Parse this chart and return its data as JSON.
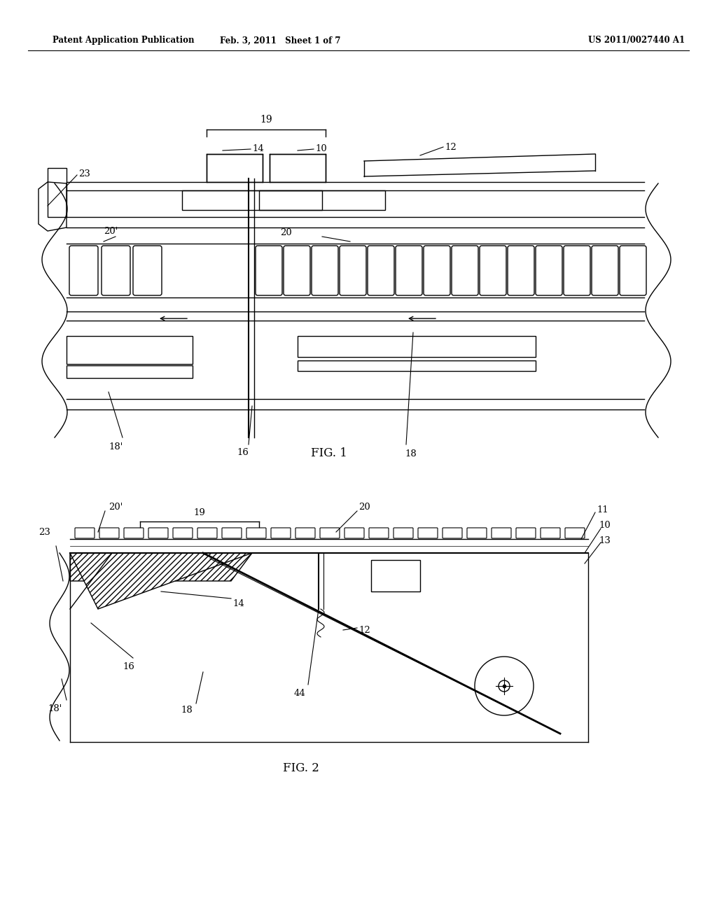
{
  "bg_color": "#ffffff",
  "line_color": "#000000",
  "header_left": "Patent Application Publication",
  "header_mid": "Feb. 3, 2011   Sheet 1 of 7",
  "header_right": "US 2011/0027440 A1",
  "fig1_label": "FIG. 1",
  "fig2_label": "FIG. 2"
}
